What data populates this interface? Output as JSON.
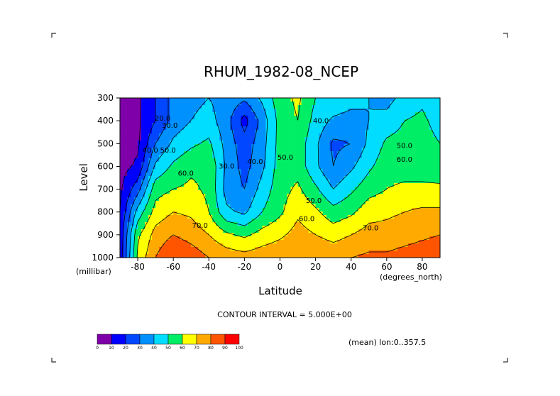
{
  "chart_data": {
    "type": "heatmap",
    "title": "RHUM_1982-08_NCEP",
    "xlabel": "Latitude",
    "ylabel": "Level",
    "x_units": "(degrees_north)",
    "y_units": "(millibar)",
    "xlim": [
      -90,
      90
    ],
    "ylim": [
      300,
      1000
    ],
    "y_axis_inverted": true,
    "x_ticks": [
      -80,
      -60,
      -40,
      -20,
      0,
      20,
      40,
      60,
      80
    ],
    "y_ticks": [
      300,
      400,
      500,
      600,
      700,
      800,
      900,
      1000
    ],
    "grid": false,
    "contour_interval_text": "CONTOUR INTERVAL = 5.000E+00",
    "averaging_text": "(mean) lon:0..357.5",
    "contour_labels": [
      {
        "value": "20.0",
        "lat": -66,
        "lev": 400
      },
      {
        "value": "30.0",
        "lat": -62,
        "lev": 430
      },
      {
        "value": "40.0",
        "lat": -73,
        "lev": 540
      },
      {
        "value": "50.0",
        "lat": -63,
        "lev": 540
      },
      {
        "value": "60.0",
        "lat": -53,
        "lev": 640
      },
      {
        "value": "70.0",
        "lat": -45,
        "lev": 870
      },
      {
        "value": "30.0",
        "lat": -30,
        "lev": 610
      },
      {
        "value": "40.0",
        "lat": -14,
        "lev": 590
      },
      {
        "value": "50.0",
        "lat": 3,
        "lev": 570
      },
      {
        "value": "40.0",
        "lat": 23,
        "lev": 410
      },
      {
        "value": "50.0",
        "lat": 19,
        "lev": 760
      },
      {
        "value": "60.0",
        "lat": 15,
        "lev": 840
      },
      {
        "value": "70.0",
        "lat": 51,
        "lev": 880
      },
      {
        "value": "50.0",
        "lat": 70,
        "lev": 520
      },
      {
        "value": "60.0",
        "lat": 70,
        "lev": 580
      }
    ],
    "colorbar": {
      "levels": [
        "0",
        "10",
        "20",
        "30",
        "40",
        "50",
        "60",
        "70",
        "80",
        "90",
        "100"
      ],
      "colors": [
        "#7f00a8",
        "#0000ff",
        "#0047ff",
        "#0091ff",
        "#00ddff",
        "#00ee66",
        "#ffff00",
        "#ffaa00",
        "#ff5500",
        "#ff0000"
      ]
    },
    "grid_lat": [
      -90,
      -80,
      -70,
      -60,
      -50,
      -40,
      -30,
      -20,
      -10,
      0,
      10,
      20,
      30,
      40,
      50,
      60,
      70,
      80,
      90
    ],
    "grid_lev": [
      300,
      400,
      500,
      600,
      700,
      800,
      900,
      1000
    ],
    "rhum_field": [
      [
        6,
        8,
        20,
        34,
        37,
        40,
        36,
        32,
        42,
        56,
        62,
        50,
        48,
        44,
        40,
        36,
        44,
        48,
        40
      ],
      [
        4,
        8,
        20,
        34,
        40,
        44,
        34,
        16,
        34,
        54,
        60,
        46,
        38,
        36,
        40,
        44,
        50,
        52,
        46
      ],
      [
        4,
        8,
        30,
        42,
        48,
        52,
        36,
        24,
        36,
        54,
        56,
        42,
        28,
        30,
        42,
        52,
        54,
        54,
        50
      ],
      [
        6,
        12,
        42,
        52,
        58,
        58,
        38,
        26,
        38,
        55,
        56,
        42,
        30,
        38,
        48,
        56,
        56,
        56,
        54
      ],
      [
        8,
        26,
        56,
        60,
        62,
        58,
        36,
        30,
        44,
        56,
        62,
        52,
        40,
        48,
        56,
        60,
        62,
        62,
        62
      ],
      [
        10,
        44,
        64,
        70,
        68,
        60,
        42,
        38,
        50,
        58,
        68,
        62,
        54,
        58,
        66,
        68,
        70,
        72,
        72
      ],
      [
        12,
        58,
        74,
        80,
        76,
        70,
        62,
        58,
        64,
        68,
        74,
        70,
        66,
        70,
        74,
        74,
        76,
        78,
        80
      ],
      [
        14,
        62,
        80,
        90,
        86,
        80,
        76,
        74,
        76,
        78,
        80,
        80,
        78,
        80,
        82,
        82,
        84,
        86,
        88
      ]
    ]
  }
}
